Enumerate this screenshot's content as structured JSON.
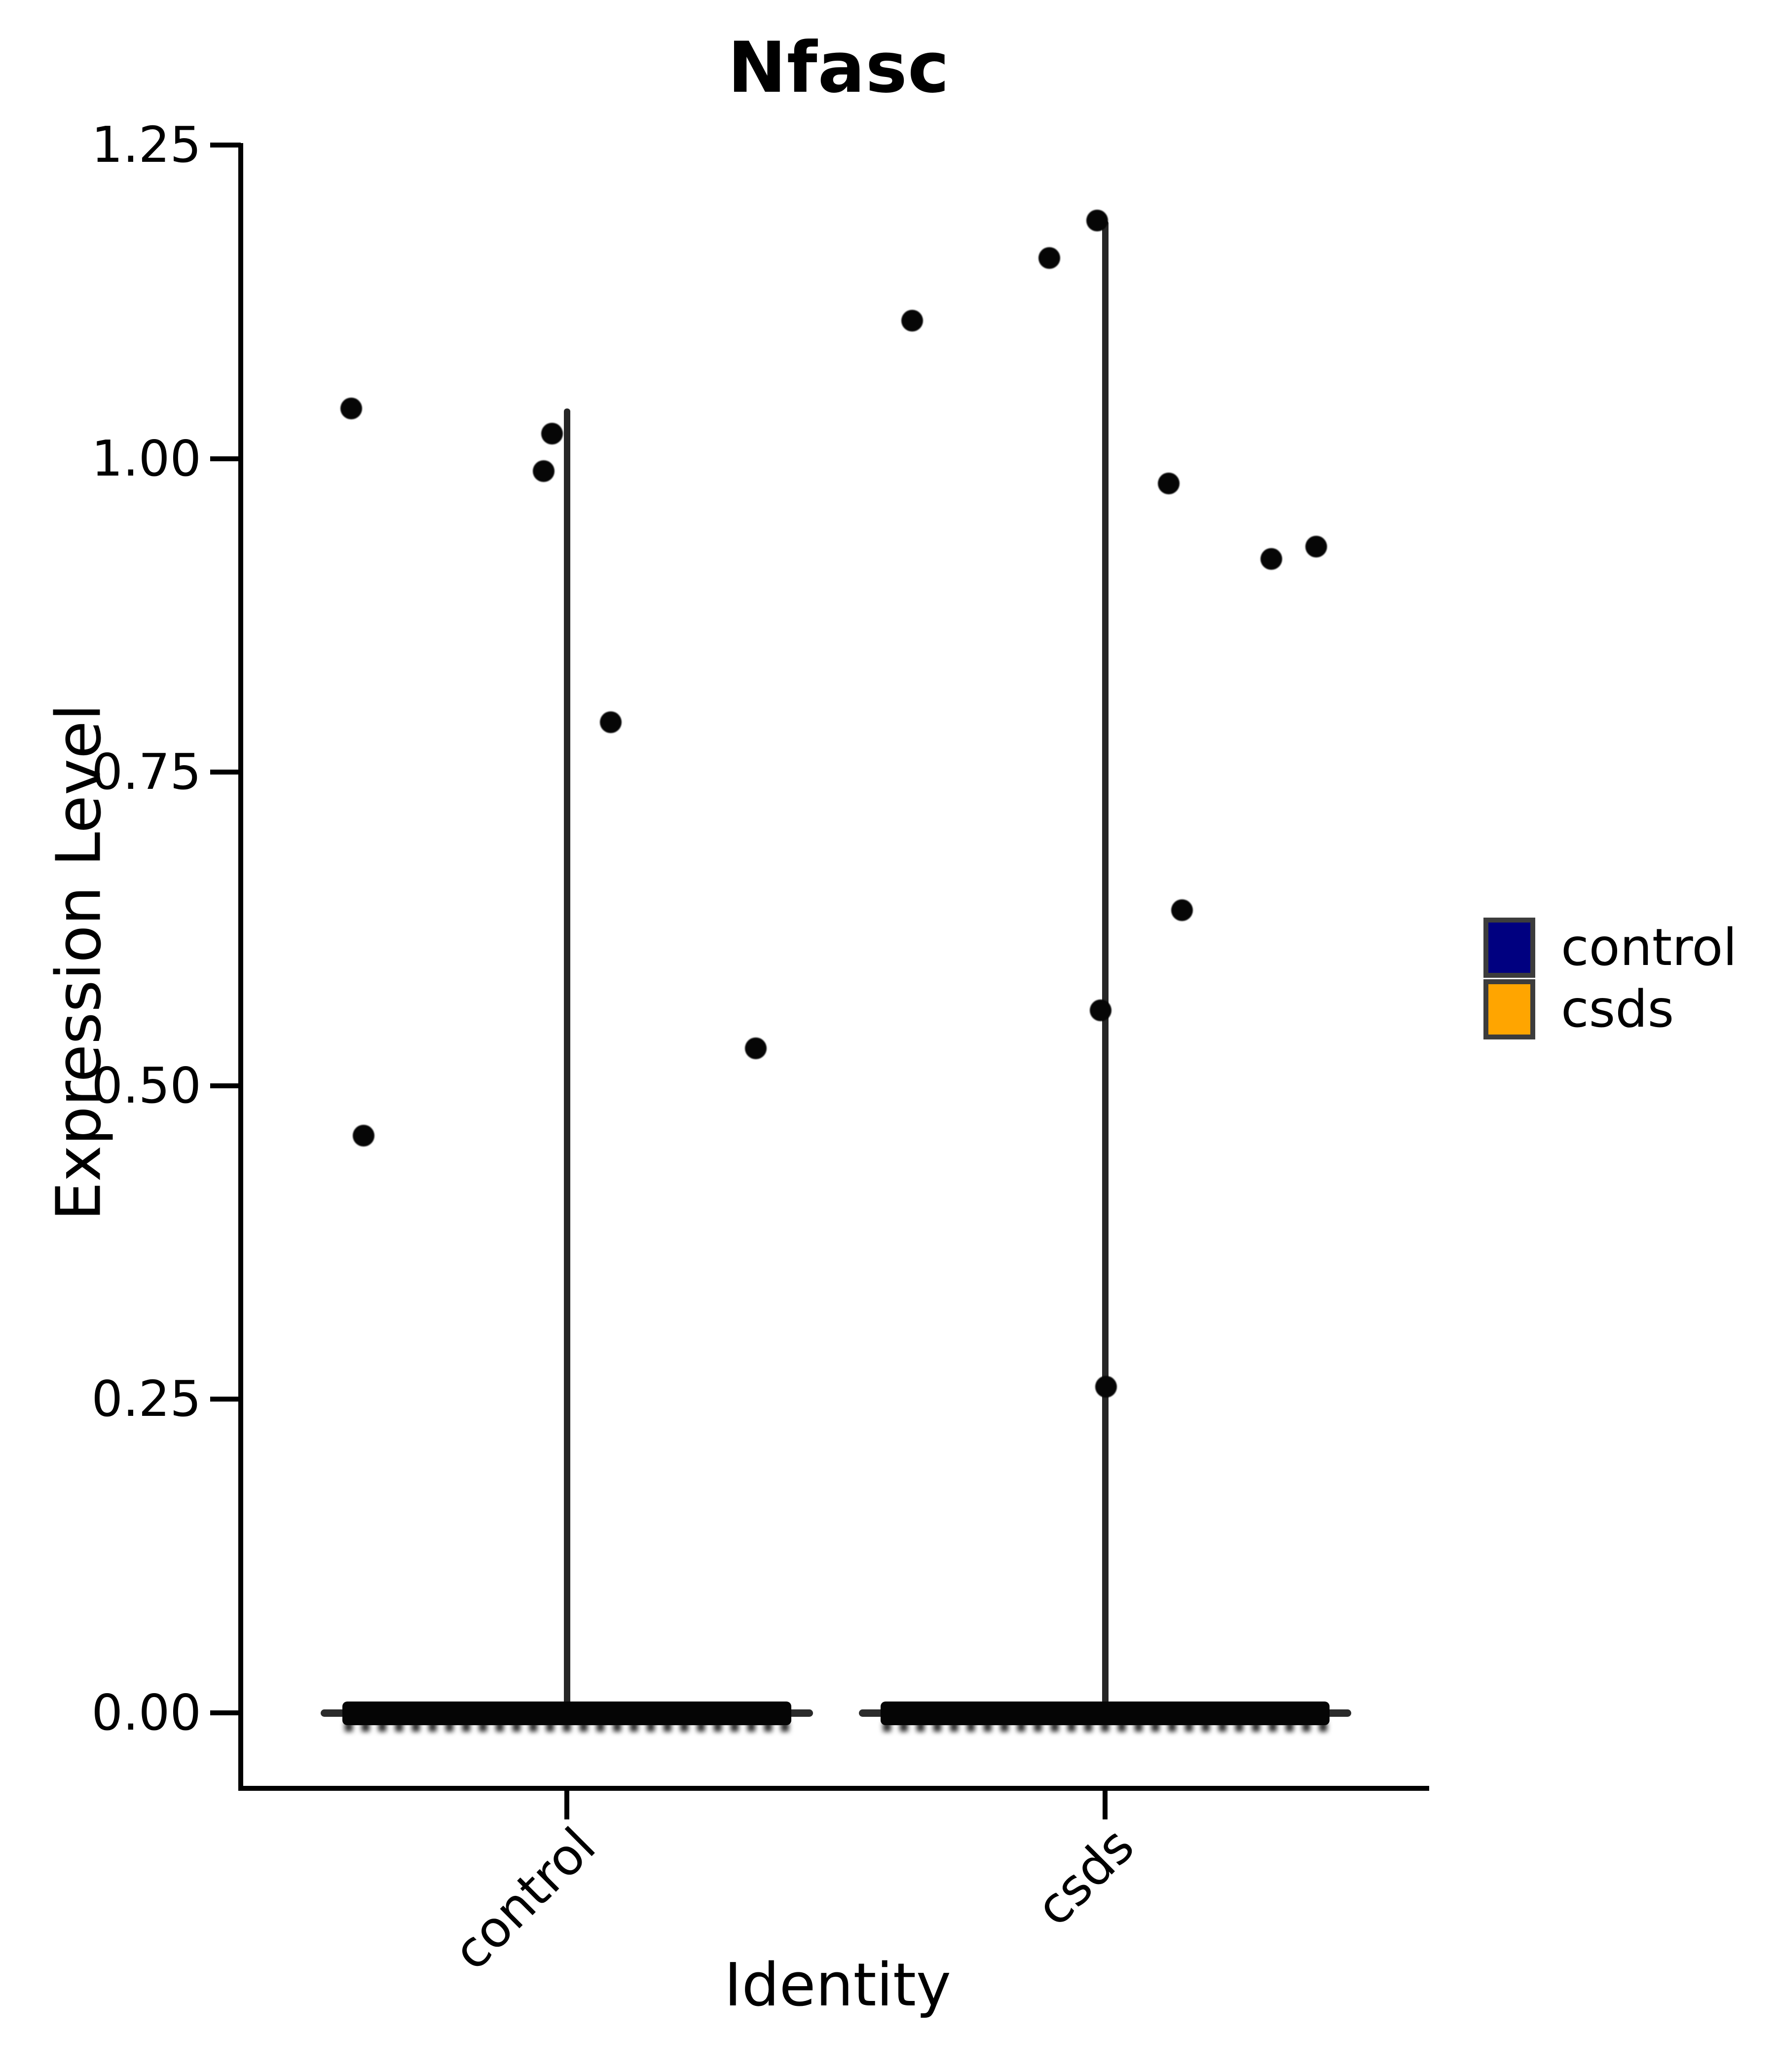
{
  "title": "Nfasc",
  "axes": {
    "x": {
      "label": "Identity",
      "tick_labels": [
        "control",
        "csds"
      ]
    },
    "y": {
      "label": "Expression Level",
      "tick_labels": [
        "1.25",
        "1.00",
        "0.75",
        "0.50",
        "0.25",
        "0.00"
      ],
      "tick_values": [
        1.25,
        1.0,
        0.75,
        0.5,
        0.25,
        0.0
      ]
    }
  },
  "legend": {
    "items": [
      {
        "label": "control",
        "color": "#000080"
      },
      {
        "label": "csds",
        "color": "#FFA500"
      }
    ]
  },
  "chart_data": {
    "type": "violin",
    "title": "Nfasc",
    "xlabel": "Identity",
    "ylabel": "Expression Level",
    "ylim": [
      0,
      1.25
    ],
    "categories": [
      "control",
      "csds"
    ],
    "legend_position": "right",
    "grid": false,
    "description": "Seurat-style single-gene violin plot. Nearly all cells have expression 0, forming a dense black band of jittered points at y=0; each violin collapses to a thin vertical spike reaching the group maximum; sparse non-zero cells appear as individual jittered points.",
    "series": [
      {
        "name": "control",
        "color": "#000080",
        "spike_max": 1.04,
        "zero_band": true,
        "nonzero_points": [
          {
            "value": 1.04,
            "dx": -437
          },
          {
            "value": 1.02,
            "dx": -30
          },
          {
            "value": 0.99,
            "dx": -47
          },
          {
            "value": 0.79,
            "dx": 89
          },
          {
            "value": 0.53,
            "dx": 383
          },
          {
            "value": 0.46,
            "dx": -412
          }
        ]
      },
      {
        "name": "csds",
        "color": "#FFA500",
        "spike_max": 1.19,
        "zero_band": true,
        "nonzero_points": [
          {
            "value": 1.19,
            "dx": -16
          },
          {
            "value": 1.16,
            "dx": -113
          },
          {
            "value": 1.11,
            "dx": -391
          },
          {
            "value": 0.98,
            "dx": 129
          },
          {
            "value": 0.93,
            "dx": 428
          },
          {
            "value": 0.92,
            "dx": 337
          },
          {
            "value": 0.64,
            "dx": 156
          },
          {
            "value": 0.56,
            "dx": -9
          },
          {
            "value": 0.26,
            "dx": 2
          }
        ]
      }
    ]
  }
}
